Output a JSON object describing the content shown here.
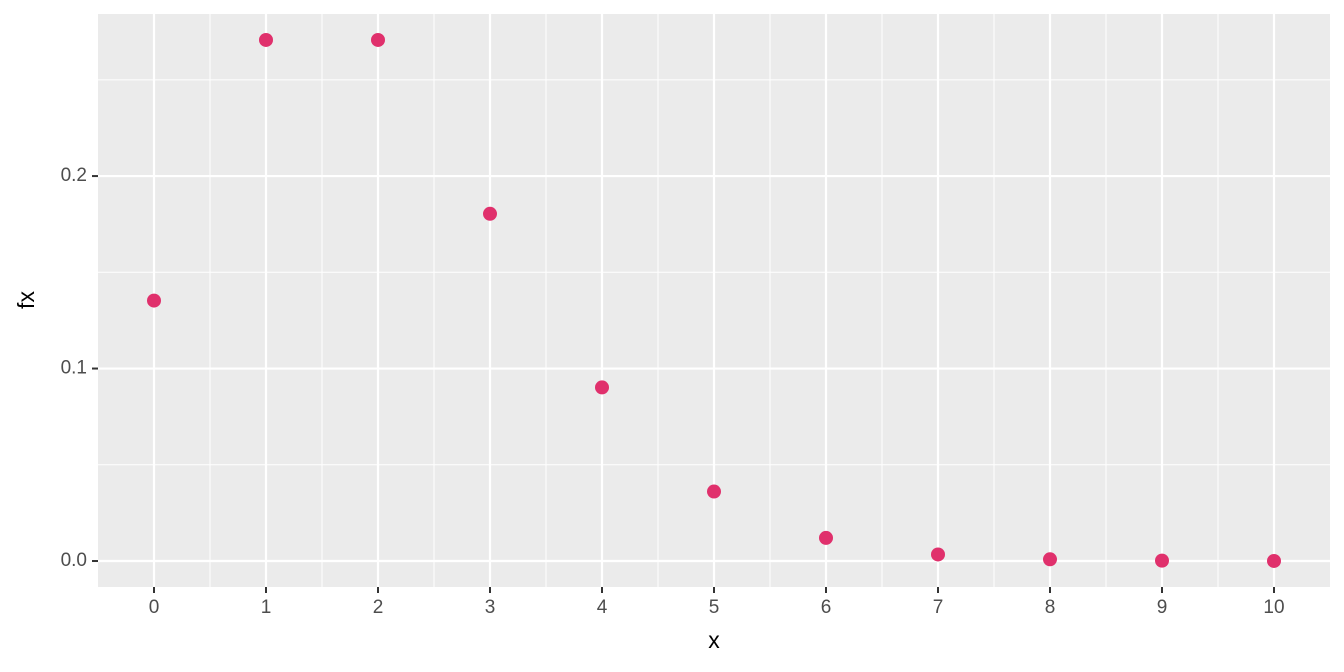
{
  "chart_data": {
    "type": "scatter",
    "x_label": "x",
    "y_label": "fx",
    "x": [
      0,
      1,
      2,
      3,
      4,
      5,
      6,
      7,
      8,
      9,
      10
    ],
    "values": [
      0.1353,
      0.2707,
      0.2707,
      0.1804,
      0.0902,
      0.0361,
      0.012,
      0.0034,
      0.0009,
      0.0002,
      4e-05
    ],
    "color": "#e0306c",
    "xlim": [
      -0.5,
      10.5
    ],
    "xticks": [
      0,
      1,
      2,
      3,
      4,
      5,
      6,
      7,
      8,
      9,
      10
    ],
    "ylim": [
      -0.0135,
      0.2842
    ],
    "yticks": [
      {
        "value": 0,
        "label": "0.0"
      },
      0.1,
      0.2
    ],
    "grid": true,
    "minor_grid": true
  }
}
